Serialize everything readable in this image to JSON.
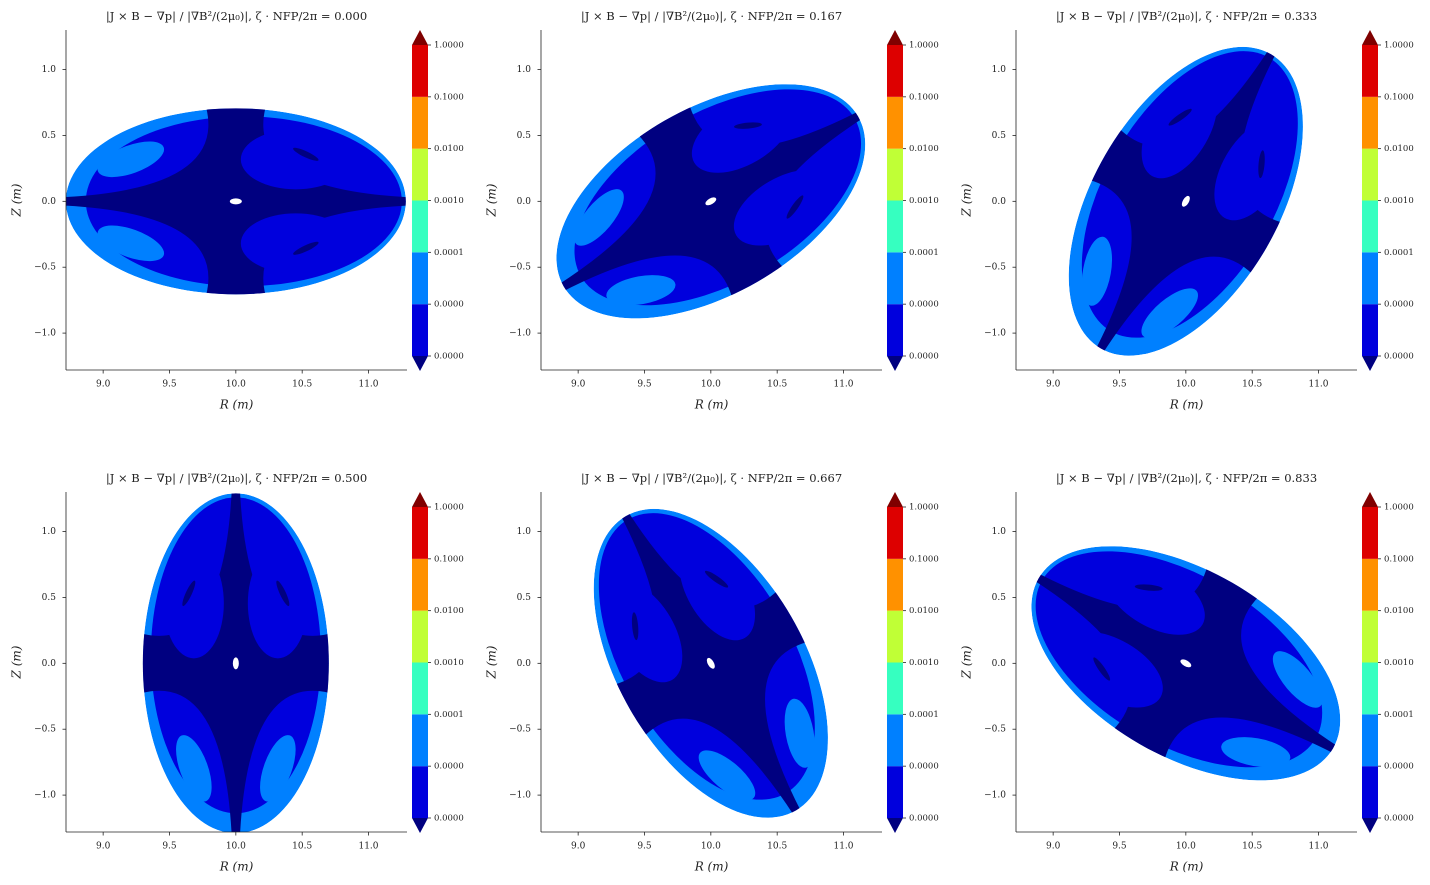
{
  "chart_data": [
    {
      "type": "contour",
      "title": "|J × B − ∇p| / |∇B²/(2μ₀)|, ζ · NFP/2π = 0.000",
      "xlabel": "R (m)",
      "ylabel": "Z (m)",
      "xlim": [
        8.72,
        11.29
      ],
      "ylim": [
        -1.28,
        1.3
      ],
      "xticks": [
        {
          "value": 9,
          "label": "9.0"
        },
        {
          "value": 9.5,
          "label": "9.5"
        },
        {
          "value": 10,
          "label": "10.0"
        },
        {
          "value": 10.5,
          "label": "10.5"
        },
        {
          "value": 11,
          "label": "11.0"
        }
      ],
      "yticks": [
        {
          "value": -1,
          "label": "−1.0"
        },
        {
          "value": -0.5,
          "label": "−0.5"
        },
        {
          "value": 0,
          "label": "0.0"
        },
        {
          "value": 0.5,
          "label": "0.5"
        },
        {
          "value": 1,
          "label": "1.0"
        }
      ],
      "colorbar": {
        "log": true,
        "ticks": [
          {
            "value": 1e-06,
            "label": "0.0000"
          },
          {
            "value": 1e-05,
            "label": "0.0000"
          },
          {
            "value": 0.0001,
            "label": "0.0001"
          },
          {
            "value": 0.001,
            "label": "0.0010"
          },
          {
            "value": 0.01,
            "label": "0.0100"
          },
          {
            "value": 0.1,
            "label": "0.1000"
          },
          {
            "value": 1,
            "label": "1.0000"
          }
        ],
        "colors": [
          "#0000dd",
          "#0080ff",
          "#36ffc0",
          "#c0ff36",
          "#ff9100",
          "#dd0000"
        ],
        "extend_colors": [
          "#000080",
          "#800000"
        ]
      }
    },
    {
      "type": "contour",
      "title": "|J × B − ∇p| / |∇B²/(2μ₀)|, ζ · NFP/2π = 0.167",
      "xlabel": "R (m)",
      "ylabel": "Z (m)",
      "xlim": [
        8.72,
        11.29
      ],
      "ylim": [
        -1.28,
        1.3
      ],
      "xticks": [
        {
          "value": 9,
          "label": "9.0"
        },
        {
          "value": 9.5,
          "label": "9.5"
        },
        {
          "value": 10,
          "label": "10.0"
        },
        {
          "value": 10.5,
          "label": "10.5"
        },
        {
          "value": 11,
          "label": "11.0"
        }
      ],
      "yticks": [
        {
          "value": -1,
          "label": "−1.0"
        },
        {
          "value": -0.5,
          "label": "−0.5"
        },
        {
          "value": 0,
          "label": "0.0"
        },
        {
          "value": 0.5,
          "label": "0.5"
        },
        {
          "value": 1,
          "label": "1.0"
        }
      ],
      "colorbar": {
        "log": true,
        "ticks": [
          {
            "value": 1e-06,
            "label": "0.0000"
          },
          {
            "value": 1e-05,
            "label": "0.0000"
          },
          {
            "value": 0.0001,
            "label": "0.0001"
          },
          {
            "value": 0.001,
            "label": "0.0010"
          },
          {
            "value": 0.01,
            "label": "0.0100"
          },
          {
            "value": 0.1,
            "label": "0.1000"
          },
          {
            "value": 1,
            "label": "1.0000"
          }
        ],
        "colors": [
          "#0000dd",
          "#0080ff",
          "#36ffc0",
          "#c0ff36",
          "#ff9100",
          "#dd0000"
        ],
        "extend_colors": [
          "#000080",
          "#800000"
        ]
      }
    },
    {
      "type": "contour",
      "title": "|J × B − ∇p| / |∇B²/(2μ₀)|, ζ · NFP/2π = 0.333",
      "xlabel": "R (m)",
      "ylabel": "Z (m)",
      "xlim": [
        8.72,
        11.29
      ],
      "ylim": [
        -1.28,
        1.3
      ],
      "xticks": [
        {
          "value": 9,
          "label": "9.0"
        },
        {
          "value": 9.5,
          "label": "9.5"
        },
        {
          "value": 10,
          "label": "10.0"
        },
        {
          "value": 10.5,
          "label": "10.5"
        },
        {
          "value": 11,
          "label": "11.0"
        }
      ],
      "yticks": [
        {
          "value": -1,
          "label": "−1.0"
        },
        {
          "value": -0.5,
          "label": "−0.5"
        },
        {
          "value": 0,
          "label": "0.0"
        },
        {
          "value": 0.5,
          "label": "0.5"
        },
        {
          "value": 1,
          "label": "1.0"
        }
      ],
      "colorbar": {
        "log": true,
        "ticks": [
          {
            "value": 1e-06,
            "label": "0.0000"
          },
          {
            "value": 1e-05,
            "label": "0.0000"
          },
          {
            "value": 0.0001,
            "label": "0.0001"
          },
          {
            "value": 0.001,
            "label": "0.0010"
          },
          {
            "value": 0.01,
            "label": "0.0100"
          },
          {
            "value": 0.1,
            "label": "0.1000"
          },
          {
            "value": 1,
            "label": "1.0000"
          }
        ],
        "colors": [
          "#0000dd",
          "#0080ff",
          "#36ffc0",
          "#c0ff36",
          "#ff9100",
          "#dd0000"
        ],
        "extend_colors": [
          "#000080",
          "#800000"
        ]
      }
    },
    {
      "type": "contour",
      "title": "|J × B − ∇p| / |∇B²/(2μ₀)|, ζ · NFP/2π = 0.500",
      "xlabel": "R (m)",
      "ylabel": "Z (m)",
      "xlim": [
        8.72,
        11.29
      ],
      "ylim": [
        -1.28,
        1.3
      ],
      "xticks": [
        {
          "value": 9,
          "label": "9.0"
        },
        {
          "value": 9.5,
          "label": "9.5"
        },
        {
          "value": 10,
          "label": "10.0"
        },
        {
          "value": 10.5,
          "label": "10.5"
        },
        {
          "value": 11,
          "label": "11.0"
        }
      ],
      "yticks": [
        {
          "value": -1,
          "label": "−1.0"
        },
        {
          "value": -0.5,
          "label": "−0.5"
        },
        {
          "value": 0,
          "label": "0.0"
        },
        {
          "value": 0.5,
          "label": "0.5"
        },
        {
          "value": 1,
          "label": "1.0"
        }
      ],
      "colorbar": {
        "log": true,
        "ticks": [
          {
            "value": 1e-06,
            "label": "0.0000"
          },
          {
            "value": 1e-05,
            "label": "0.0000"
          },
          {
            "value": 0.0001,
            "label": "0.0001"
          },
          {
            "value": 0.001,
            "label": "0.0010"
          },
          {
            "value": 0.01,
            "label": "0.0100"
          },
          {
            "value": 0.1,
            "label": "0.1000"
          },
          {
            "value": 1,
            "label": "1.0000"
          }
        ],
        "colors": [
          "#0000dd",
          "#0080ff",
          "#36ffc0",
          "#c0ff36",
          "#ff9100",
          "#dd0000"
        ],
        "extend_colors": [
          "#000080",
          "#800000"
        ]
      }
    },
    {
      "type": "contour",
      "title": "|J × B − ∇p| / |∇B²/(2μ₀)|, ζ · NFP/2π = 0.667",
      "xlabel": "R (m)",
      "ylabel": "Z (m)",
      "xlim": [
        8.72,
        11.29
      ],
      "ylim": [
        -1.28,
        1.3
      ],
      "xticks": [
        {
          "value": 9,
          "label": "9.0"
        },
        {
          "value": 9.5,
          "label": "9.5"
        },
        {
          "value": 10,
          "label": "10.0"
        },
        {
          "value": 10.5,
          "label": "10.5"
        },
        {
          "value": 11,
          "label": "11.0"
        }
      ],
      "yticks": [
        {
          "value": -1,
          "label": "−1.0"
        },
        {
          "value": -0.5,
          "label": "−0.5"
        },
        {
          "value": 0,
          "label": "0.0"
        },
        {
          "value": 0.5,
          "label": "0.5"
        },
        {
          "value": 1,
          "label": "1.0"
        }
      ],
      "colorbar": {
        "log": true,
        "ticks": [
          {
            "value": 1e-06,
            "label": "0.0000"
          },
          {
            "value": 1e-05,
            "label": "0.0000"
          },
          {
            "value": 0.0001,
            "label": "0.0001"
          },
          {
            "value": 0.001,
            "label": "0.0010"
          },
          {
            "value": 0.01,
            "label": "0.0100"
          },
          {
            "value": 0.1,
            "label": "0.1000"
          },
          {
            "value": 1,
            "label": "1.0000"
          }
        ],
        "colors": [
          "#0000dd",
          "#0080ff",
          "#36ffc0",
          "#c0ff36",
          "#ff9100",
          "#dd0000"
        ],
        "extend_colors": [
          "#000080",
          "#800000"
        ]
      }
    },
    {
      "type": "contour",
      "title": "|J × B − ∇p| / |∇B²/(2μ₀)|, ζ · NFP/2π = 0.833",
      "xlabel": "R (m)",
      "ylabel": "Z (m)",
      "xlim": [
        8.72,
        11.29
      ],
      "ylim": [
        -1.28,
        1.3
      ],
      "xticks": [
        {
          "value": 9,
          "label": "9.0"
        },
        {
          "value": 9.5,
          "label": "9.5"
        },
        {
          "value": 10,
          "label": "10.0"
        },
        {
          "value": 10.5,
          "label": "10.5"
        },
        {
          "value": 11,
          "label": "11.0"
        }
      ],
      "yticks": [
        {
          "value": -1,
          "label": "−1.0"
        },
        {
          "value": -0.5,
          "label": "−0.5"
        },
        {
          "value": 0,
          "label": "0.0"
        },
        {
          "value": 0.5,
          "label": "0.5"
        },
        {
          "value": 1,
          "label": "1.0"
        }
      ],
      "colorbar": {
        "log": true,
        "ticks": [
          {
            "value": 1e-06,
            "label": "0.0000"
          },
          {
            "value": 1e-05,
            "label": "0.0000"
          },
          {
            "value": 0.0001,
            "label": "0.0001"
          },
          {
            "value": 0.001,
            "label": "0.0010"
          },
          {
            "value": 0.01,
            "label": "0.0100"
          },
          {
            "value": 0.1,
            "label": "0.1000"
          },
          {
            "value": 1,
            "label": "1.0000"
          }
        ],
        "colors": [
          "#0000dd",
          "#0080ff",
          "#36ffc0",
          "#c0ff36",
          "#ff9100",
          "#dd0000"
        ],
        "extend_colors": [
          "#000080",
          "#800000"
        ]
      }
    }
  ]
}
